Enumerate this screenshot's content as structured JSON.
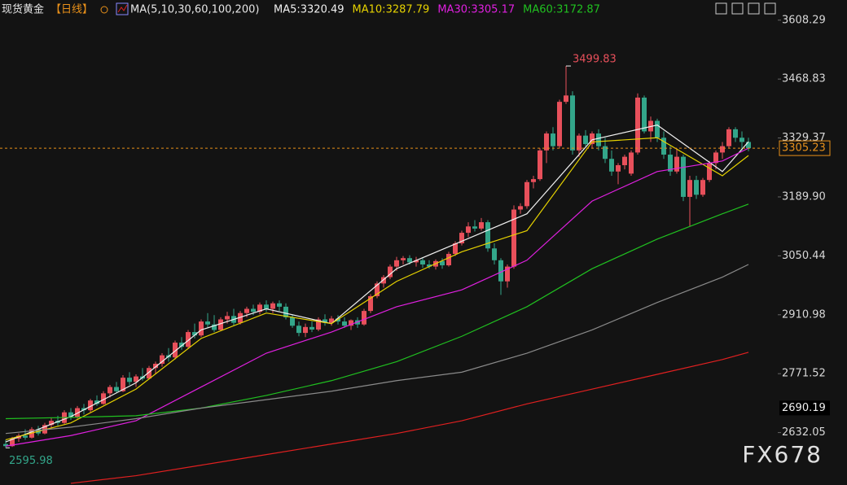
{
  "chart_data": {
    "type": "candlestick",
    "title": "现货黄金",
    "period": "【日线】",
    "indicator": "MA(5,10,30,60,100,200)",
    "watermark": "FX678",
    "up_color": "#e8505b",
    "down_color": "#33a68a",
    "ylim": [
      2508,
      3656
    ],
    "yticks": [
      3608.29,
      3468.83,
      3329.37,
      {
        "value": 3189.9,
        "label": "3189.90"
      },
      3050.44,
      2910.98,
      2771.52,
      2632.05
    ],
    "current_price": 3305.23,
    "current_color": "#e8901a",
    "ref_price": 2690.19,
    "high_label": {
      "value": 3499.83,
      "index": 86
    },
    "low_label": {
      "value": 2595.98,
      "index": 0
    },
    "candles": [
      [
        2605,
        2615,
        2595.98,
        2600
      ],
      [
        2600,
        2622,
        2598,
        2618
      ],
      [
        2618,
        2630,
        2610,
        2625
      ],
      [
        2625,
        2640,
        2615,
        2620
      ],
      [
        2620,
        2645,
        2618,
        2640
      ],
      [
        2640,
        2648,
        2625,
        2630
      ],
      [
        2630,
        2655,
        2628,
        2650
      ],
      [
        2650,
        2668,
        2642,
        2660
      ],
      [
        2660,
        2672,
        2648,
        2655
      ],
      [
        2655,
        2685,
        2652,
        2680
      ],
      [
        2680,
        2690,
        2662,
        2668
      ],
      [
        2668,
        2695,
        2665,
        2690
      ],
      [
        2690,
        2700,
        2675,
        2685
      ],
      [
        2685,
        2712,
        2680,
        2708
      ],
      [
        2708,
        2720,
        2695,
        2700
      ],
      [
        2700,
        2730,
        2698,
        2725
      ],
      [
        2725,
        2745,
        2715,
        2740
      ],
      [
        2740,
        2752,
        2725,
        2730
      ],
      [
        2730,
        2768,
        2728,
        2762
      ],
      [
        2762,
        2775,
        2745,
        2752
      ],
      [
        2752,
        2770,
        2740,
        2765
      ],
      [
        2765,
        2785,
        2755,
        2760
      ],
      [
        2760,
        2790,
        2758,
        2785
      ],
      [
        2785,
        2800,
        2772,
        2795
      ],
      [
        2795,
        2820,
        2788,
        2815
      ],
      [
        2815,
        2832,
        2800,
        2810
      ],
      [
        2810,
        2850,
        2805,
        2845
      ],
      [
        2845,
        2858,
        2828,
        2835
      ],
      [
        2835,
        2875,
        2830,
        2870
      ],
      [
        2870,
        2890,
        2855,
        2862
      ],
      [
        2862,
        2900,
        2858,
        2895
      ],
      [
        2895,
        2915,
        2880,
        2888
      ],
      [
        2888,
        2910,
        2870,
        2875
      ],
      [
        2875,
        2905,
        2872,
        2900
      ],
      [
        2900,
        2918,
        2890,
        2908
      ],
      [
        2908,
        2925,
        2885,
        2892
      ],
      [
        2892,
        2920,
        2888,
        2915
      ],
      [
        2915,
        2930,
        2905,
        2925
      ],
      [
        2925,
        2935,
        2910,
        2918
      ],
      [
        2918,
        2940,
        2912,
        2935
      ],
      [
        2935,
        2945,
        2918,
        2925
      ],
      [
        2925,
        2942,
        2915,
        2938
      ],
      [
        2938,
        2945,
        2920,
        2930
      ],
      [
        2930,
        2938,
        2900,
        2905
      ],
      [
        2905,
        2912,
        2880,
        2885
      ],
      [
        2885,
        2895,
        2860,
        2868
      ],
      [
        2868,
        2890,
        2858,
        2882
      ],
      [
        2882,
        2895,
        2870,
        2876
      ],
      [
        2876,
        2905,
        2872,
        2900
      ],
      [
        2900,
        2912,
        2885,
        2892
      ],
      [
        2892,
        2908,
        2885,
        2902
      ],
      [
        2902,
        2910,
        2888,
        2895
      ],
      [
        2895,
        2905,
        2880,
        2885
      ],
      [
        2885,
        2900,
        2875,
        2898
      ],
      [
        2898,
        2905,
        2880,
        2888
      ],
      [
        2888,
        2925,
        2885,
        2920
      ],
      [
        2920,
        2960,
        2915,
        2955
      ],
      [
        2955,
        2990,
        2950,
        2985
      ],
      [
        2985,
        3005,
        2975,
        3000
      ],
      [
        3000,
        3030,
        2995,
        3025
      ],
      [
        3025,
        3048,
        3015,
        3040
      ],
      [
        3040,
        3050,
        3030,
        3045
      ],
      [
        3045,
        3052,
        3030,
        3035
      ],
      [
        3035,
        3048,
        3025,
        3040
      ],
      [
        3040,
        3045,
        3022,
        3030
      ],
      [
        3030,
        3040,
        3020,
        3025
      ],
      [
        3025,
        3042,
        3018,
        3038
      ],
      [
        3038,
        3045,
        3020,
        3028
      ],
      [
        3028,
        3060,
        3025,
        3055
      ],
      [
        3055,
        3085,
        3050,
        3080
      ],
      [
        3080,
        3110,
        3075,
        3105
      ],
      [
        3105,
        3130,
        3095,
        3120
      ],
      [
        3120,
        3135,
        3108,
        3115
      ],
      [
        3115,
        3140,
        3110,
        3130
      ],
      [
        3130,
        3135,
        3060,
        3068
      ],
      [
        3068,
        3080,
        3030,
        3040
      ],
      [
        3040,
        3045,
        2958,
        2990
      ],
      [
        2990,
        3030,
        2975,
        3025
      ],
      [
        3025,
        3170,
        3020,
        3160
      ],
      [
        3160,
        3175,
        3150,
        3168
      ],
      [
        3168,
        3230,
        3162,
        3225
      ],
      [
        3225,
        3240,
        3210,
        3232
      ],
      [
        3232,
        3305,
        3228,
        3300
      ],
      [
        3300,
        3345,
        3270,
        3340
      ],
      [
        3340,
        3355,
        3300,
        3310
      ],
      [
        3310,
        3420,
        3305,
        3415
      ],
      [
        3415,
        3499.83,
        3410,
        3430
      ],
      [
        3430,
        3440,
        3290,
        3300
      ],
      [
        3300,
        3340,
        3285,
        3335
      ],
      [
        3335,
        3348,
        3310,
        3315
      ],
      [
        3315,
        3345,
        3305,
        3340
      ],
      [
        3340,
        3350,
        3300,
        3310
      ],
      [
        3310,
        3330,
        3270,
        3280
      ],
      [
        3280,
        3300,
        3240,
        3250
      ],
      [
        3250,
        3270,
        3220,
        3265
      ],
      [
        3265,
        3290,
        3255,
        3285
      ],
      [
        3245,
        3300,
        3240,
        3295
      ],
      [
        3295,
        3435,
        3290,
        3425
      ],
      [
        3425,
        3430,
        3340,
        3345
      ],
      [
        3345,
        3380,
        3320,
        3370
      ],
      [
        3370,
        3375,
        3320,
        3330
      ],
      [
        3330,
        3345,
        3280,
        3290
      ],
      [
        3290,
        3310,
        3240,
        3250
      ],
      [
        3250,
        3305,
        3245,
        3285
      ],
      [
        3285,
        3290,
        3180,
        3190
      ],
      [
        3190,
        3240,
        3120,
        3230
      ],
      [
        3230,
        3240,
        3185,
        3195
      ],
      [
        3195,
        3235,
        3190,
        3230
      ],
      [
        3230,
        3275,
        3225,
        3270
      ],
      [
        3270,
        3300,
        3255,
        3295
      ],
      [
        3295,
        3320,
        3280,
        3310
      ],
      [
        3310,
        3355,
        3305,
        3350
      ],
      [
        3350,
        3355,
        3320,
        3330
      ],
      [
        3330,
        3345,
        3300,
        3320
      ],
      [
        3320,
        3330,
        3298,
        3305.23
      ]
    ],
    "ma_x": [
      0,
      10,
      20,
      30,
      40,
      50,
      60,
      70,
      80,
      90,
      100,
      110,
      114
    ],
    "series": [
      {
        "name": "MA5:3320.49",
        "color": "#f0f0f0",
        "values": [
          2610,
          2670,
          2750,
          2875,
          2925,
          2890,
          3020,
          3085,
          3150,
          3325,
          3360,
          3250,
          3320.49
        ]
      },
      {
        "name": "MA10:3287.79",
        "color": "#e6d200",
        "values": [
          2615,
          2655,
          2735,
          2855,
          2915,
          2890,
          2990,
          3060,
          3110,
          3320,
          3330,
          3240,
          3287.79
        ]
      },
      {
        "name": "MA30:3305.17",
        "color": "#e020e0",
        "values": [
          2600,
          2625,
          2660,
          2740,
          2820,
          2870,
          2930,
          2970,
          3040,
          3180,
          3250,
          3275,
          3305.17
        ]
      },
      {
        "name": "MA60:3172.87",
        "color": "#20c020",
        "values": [
          2665,
          2668,
          2672,
          2690,
          2720,
          2755,
          2800,
          2860,
          2930,
          3020,
          3090,
          3150,
          3172.87
        ]
      },
      {
        "color": "#8a8a8a",
        "values": [
          2630,
          2645,
          2665,
          2690,
          2710,
          2730,
          2755,
          2775,
          2820,
          2875,
          2940,
          3000,
          3030
        ]
      },
      {
        "color": "#e02020",
        "values": [
          null,
          2512,
          2530,
          2555,
          2580,
          2605,
          2630,
          2660,
          2700,
          2735,
          2770,
          2805,
          2822
        ]
      }
    ]
  }
}
